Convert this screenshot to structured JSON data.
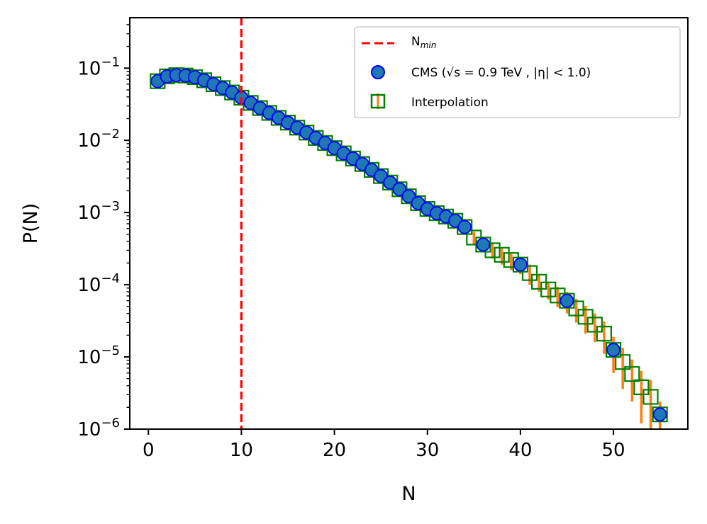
{
  "chart_data": {
    "type": "scatter",
    "title": "",
    "xlabel": "N",
    "ylabel": "P(N)",
    "xlim": [
      -2,
      58
    ],
    "ylim": [
      1e-06,
      0.5
    ],
    "yscale": "log",
    "xticks": [
      0,
      10,
      20,
      30,
      40,
      50
    ],
    "yticks": [
      {
        "value": 1e-06,
        "base": "10",
        "exp": "−6"
      },
      {
        "value": 1e-05,
        "base": "10",
        "exp": "−5"
      },
      {
        "value": 0.0001,
        "base": "10",
        "exp": "−4"
      },
      {
        "value": 0.001,
        "base": "10",
        "exp": "−3"
      },
      {
        "value": 0.01,
        "base": "10",
        "exp": "−2"
      },
      {
        "value": 0.1,
        "base": "10",
        "exp": "−1"
      }
    ],
    "vline": {
      "x": 10,
      "label_main": "N",
      "label_sub": "min",
      "color": "#ff0000"
    },
    "legend": {
      "position": "top-right",
      "nmin": "N",
      "nmin_sub": "min",
      "cms": "CMS (√s = 0.9 TeV , |η| < 1.0)",
      "interp": "Interpolation"
    },
    "series": [
      {
        "name": "CMS (√s = 0.9 TeV , |η| < 1.0)",
        "marker": "circle",
        "color": "#1f77b4",
        "edge": "#0000ff",
        "x": [
          1,
          2,
          3,
          4,
          5,
          6,
          7,
          8,
          9,
          10,
          11,
          12,
          13,
          14,
          15,
          16,
          17,
          18,
          19,
          20,
          21,
          22,
          23,
          24,
          25,
          26,
          27,
          28,
          29,
          30,
          31,
          32,
          33,
          34,
          36,
          40,
          45,
          50,
          55
        ],
        "values": [
          0.066,
          0.077,
          0.08,
          0.079,
          0.075,
          0.068,
          0.06,
          0.053,
          0.046,
          0.039,
          0.033,
          0.028,
          0.024,
          0.0205,
          0.0176,
          0.015,
          0.0128,
          0.0108,
          0.0092,
          0.0078,
          0.0066,
          0.0056,
          0.0047,
          0.0039,
          0.0032,
          0.0026,
          0.0021,
          0.00168,
          0.00135,
          0.00112,
          0.00098,
          0.00088,
          0.00077,
          0.00063,
          0.00036,
          0.00019,
          6e-05,
          1.25e-05,
          1.6e-06
        ]
      },
      {
        "name": "Interpolation",
        "marker": "square",
        "edge": "#008000",
        "errcolor": "#ff7f0e",
        "x": [
          1,
          2,
          3,
          4,
          5,
          6,
          7,
          8,
          9,
          10,
          11,
          12,
          13,
          14,
          15,
          16,
          17,
          18,
          19,
          20,
          21,
          22,
          23,
          24,
          25,
          26,
          27,
          28,
          29,
          30,
          31,
          32,
          33,
          34,
          35,
          36,
          37,
          38,
          39,
          40,
          41,
          42,
          43,
          44,
          45,
          46,
          47,
          48,
          49,
          50,
          51,
          52,
          53,
          54,
          55
        ],
        "values": [
          0.066,
          0.077,
          0.08,
          0.079,
          0.075,
          0.068,
          0.06,
          0.053,
          0.046,
          0.039,
          0.033,
          0.028,
          0.024,
          0.0205,
          0.0176,
          0.015,
          0.0128,
          0.0108,
          0.0092,
          0.0078,
          0.0066,
          0.0056,
          0.0047,
          0.0039,
          0.0032,
          0.0026,
          0.0021,
          0.00168,
          0.00135,
          0.00112,
          0.00098,
          0.00088,
          0.00077,
          0.00063,
          0.00045,
          0.00036,
          0.0003,
          0.00026,
          0.00022,
          0.00019,
          0.000145,
          0.00011,
          8.6e-05,
          7.1e-05,
          6e-05,
          4.7e-05,
          3.6e-05,
          2.8e-05,
          2.1e-05,
          1.25e-05,
          8.5e-06,
          5.8e-06,
          3.8e-06,
          2.8e-06,
          1.6e-06
        ],
        "err_low": [
          0.063,
          0.074,
          0.077,
          0.076,
          0.072,
          0.065,
          0.057,
          0.05,
          0.044,
          0.037,
          0.031,
          0.026,
          0.022,
          0.019,
          0.0163,
          0.0138,
          0.0117,
          0.0099,
          0.0084,
          0.0071,
          0.006,
          0.0051,
          0.0043,
          0.0036,
          0.0029,
          0.0024,
          0.0019,
          0.0015,
          0.0012,
          0.001,
          0.00088,
          0.00079,
          0.00069,
          0.00056,
          0.00036,
          0.00028,
          0.00023,
          0.00019,
          0.00016,
          0.00014,
          0.0001,
          8e-05,
          6.2e-05,
          4.9e-05,
          4e-05,
          3e-05,
          2.1e-05,
          1.6e-05,
          1.1e-05,
          6e-06,
          3.6e-06,
          2.4e-06,
          1.2e-06,
          8e-07,
          8e-07
        ],
        "err_high": [
          0.069,
          0.08,
          0.083,
          0.082,
          0.078,
          0.071,
          0.063,
          0.056,
          0.048,
          0.041,
          0.035,
          0.03,
          0.026,
          0.022,
          0.019,
          0.0162,
          0.0139,
          0.0117,
          0.01,
          0.0085,
          0.0072,
          0.0061,
          0.0051,
          0.0042,
          0.0035,
          0.0028,
          0.0023,
          0.00186,
          0.0015,
          0.00124,
          0.00108,
          0.00097,
          0.00085,
          0.0007,
          0.00054,
          0.00044,
          0.00037,
          0.00033,
          0.00028,
          0.00024,
          0.00019,
          0.00014,
          0.00011,
          9.3e-05,
          8e-05,
          6.4e-05,
          5.1e-05,
          4e-05,
          3.1e-05,
          1.9e-05,
          1.34e-05,
          9.2e-06,
          6.4e-06,
          4.8e-06,
          2.4e-06
        ]
      }
    ]
  }
}
